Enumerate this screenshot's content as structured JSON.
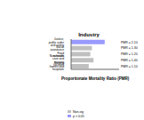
{
  "chart_data": {
    "type": "bar",
    "orientation": "horizontal",
    "title": "Industry",
    "x_label": "Proportionate Mortality Ratio (PMR)",
    "categories": [
      "Justice, public order and safety",
      "Social assistance",
      "Food services",
      "Non-health care and nursing facilities",
      "Nursing homes and hospitals"
    ],
    "values": [
      2.1,
      1.3,
      1.2,
      1.4,
      1.1
    ],
    "value_labels": [
      "PMR = 2.10",
      "PMR = 1.30",
      "PMR = 1.20",
      "PMR = 1.40",
      "PMR = 1.10"
    ],
    "data_labels": true,
    "colors": [
      "#9999ff",
      "#c0c0c0",
      "#c0c0c0",
      "#c0c0c0",
      "#c0c0c0"
    ],
    "series": [
      {
        "name": "Non-sig",
        "color": "#c0c0c0"
      },
      {
        "name": "p < 0.05",
        "color": "#9999ff"
      }
    ],
    "xlim": [
      0,
      3
    ],
    "xticks": [
      0,
      3
    ],
    "tick_labels": "y",
    "grid": false
  }
}
